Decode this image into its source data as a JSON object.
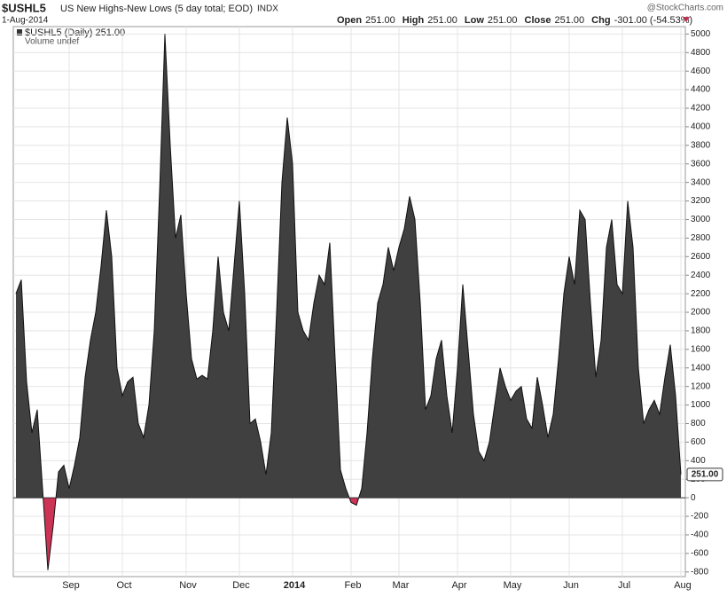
{
  "header": {
    "symbol": "$USHL5",
    "description": "US New Highs-New Lows (5 day total; EOD)",
    "exchange": "INDX",
    "source": "@StockCharts.com",
    "date": "1-Aug-2014",
    "ohlc": [
      {
        "label": "Open",
        "value": "251.00"
      },
      {
        "label": "High",
        "value": "251.00"
      },
      {
        "label": "Low",
        "value": "251.00"
      },
      {
        "label": "Close",
        "value": "251.00"
      },
      {
        "label": "Chg",
        "value": "-301.00 (-54.53%)"
      }
    ],
    "volume_note": "Volume undef"
  },
  "chart_data": {
    "type": "area",
    "categories": [
      null,
      null,
      null,
      null,
      null,
      null,
      null,
      null,
      null,
      null,
      "Sep",
      null,
      null,
      null,
      null,
      null,
      null,
      null,
      null,
      null,
      "Oct",
      null,
      null,
      null,
      null,
      null,
      null,
      null,
      null,
      null,
      null,
      null,
      "Nov",
      null,
      null,
      null,
      null,
      null,
      null,
      null,
      null,
      null,
      "Dec",
      null,
      null,
      null,
      null,
      null,
      null,
      null,
      null,
      null,
      "2014",
      null,
      null,
      null,
      null,
      null,
      null,
      null,
      null,
      null,
      null,
      "Feb",
      null,
      null,
      null,
      null,
      null,
      null,
      null,
      null,
      "Mar",
      null,
      null,
      null,
      null,
      null,
      null,
      null,
      null,
      null,
      null,
      "Apr",
      null,
      null,
      null,
      null,
      null,
      null,
      null,
      null,
      null,
      "May",
      null,
      null,
      null,
      null,
      null,
      null,
      null,
      null,
      null,
      null,
      "Jun",
      null,
      null,
      null,
      null,
      null,
      null,
      null,
      null,
      null,
      "Jul",
      null,
      null,
      null,
      null,
      null,
      null,
      null,
      null,
      null,
      null,
      "Aug"
    ],
    "series": [
      {
        "name": "$USHL5 (Daily) 251.00",
        "color": "#404040",
        "negative_color": "#cc3355",
        "values": [
          2200,
          2350,
          1250,
          700,
          950,
          100,
          -780,
          -300,
          280,
          350,
          100,
          350,
          650,
          1300,
          1700,
          2000,
          2500,
          3100,
          2600,
          1400,
          1100,
          1250,
          1300,
          800,
          650,
          1000,
          1800,
          3300,
          5000,
          3800,
          2800,
          3050,
          2200,
          1500,
          1280,
          1320,
          1280,
          1800,
          2600,
          2000,
          1800,
          2500,
          3200,
          2200,
          800,
          850,
          600,
          250,
          700,
          2000,
          3400,
          4100,
          3600,
          2000,
          1800,
          1700,
          2100,
          2400,
          2300,
          2750,
          1500,
          300,
          100,
          -50,
          -80,
          100,
          700,
          1500,
          2100,
          2300,
          2700,
          2450,
          2700,
          2900,
          3250,
          3000,
          2100,
          950,
          1100,
          1500,
          1700,
          1100,
          700,
          1400,
          2300,
          1600,
          900,
          500,
          400,
          600,
          1000,
          1400,
          1200,
          1050,
          1150,
          1200,
          850,
          750,
          1300,
          1000,
          650,
          900,
          1500,
          2200,
          2600,
          2300,
          3100,
          3000,
          2100,
          1300,
          1700,
          2700,
          3000,
          2300,
          2200,
          3200,
          2700,
          1400,
          800,
          950,
          1050,
          900,
          1300,
          1650,
          1100,
          251
        ],
        "value_labels": [
          null,
          null,
          null,
          null,
          null,
          null,
          null,
          null,
          null,
          null,
          null,
          null,
          null,
          null,
          null,
          null,
          null,
          null,
          null,
          null,
          null,
          null,
          null,
          null,
          null,
          null,
          null,
          null,
          null,
          null,
          null,
          null,
          null,
          null,
          null,
          null,
          null,
          null,
          null,
          null,
          null,
          null,
          null,
          null,
          null,
          null,
          null,
          null,
          null,
          null,
          null,
          null,
          null,
          null,
          null,
          null,
          null,
          null,
          null,
          null,
          null,
          null,
          null,
          null,
          null,
          null,
          null,
          null,
          null,
          null,
          null,
          null,
          null,
          null,
          null,
          null,
          null,
          null,
          null,
          null,
          null,
          null,
          null,
          null,
          null,
          null,
          null,
          null,
          null,
          null,
          null,
          null,
          null,
          null,
          null,
          null,
          null,
          null,
          null,
          null,
          null,
          null,
          null,
          null,
          null,
          null,
          null,
          null,
          null,
          null,
          null,
          null,
          null,
          null,
          null,
          null,
          null,
          null,
          null,
          null,
          null,
          null,
          null,
          null,
          null,
          "251.00"
        ]
      }
    ],
    "ylim": [
      -850,
      5080
    ],
    "yticks": [
      -800,
      -600,
      -400,
      -200,
      0,
      200,
      400,
      600,
      800,
      1000,
      1200,
      1400,
      1600,
      1800,
      2000,
      2200,
      2400,
      2600,
      2800,
      3000,
      3200,
      3400,
      3600,
      3800,
      4000,
      4200,
      4400,
      4600,
      4800,
      5000
    ],
    "grid": true
  }
}
